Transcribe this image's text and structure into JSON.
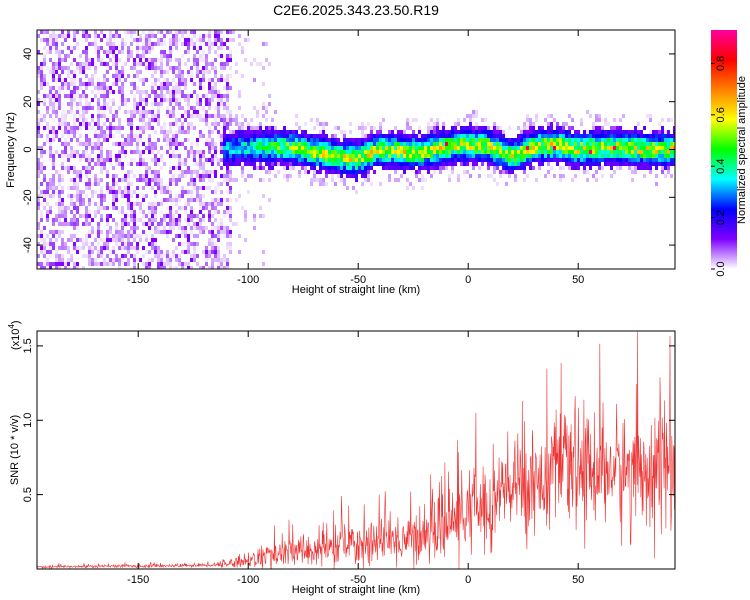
{
  "figure_title": "C2E6.2025.343.23.50.R19",
  "chart_data": [
    {
      "type": "heatmap",
      "title": "",
      "xlabel": "Height of straight line (km)",
      "ylabel": "Frequency (Hz)",
      "xlim": [
        -196,
        94
      ],
      "ylim": [
        -50,
        50
      ],
      "x_ticks": [
        -150,
        -100,
        -50,
        0,
        50
      ],
      "y_ticks": [
        -40,
        -20,
        0,
        20,
        40
      ],
      "x_tick_labels": [
        "-150",
        "-100",
        "-50",
        "0",
        "50"
      ],
      "y_tick_labels": [
        "-40",
        "-20",
        "0",
        "20",
        "40"
      ],
      "colorbar": {
        "label": "Normalized spectral amplitude",
        "range": [
          0,
          0.93
        ],
        "ticks": [
          0.0,
          0.2,
          0.4,
          0.6,
          0.8
        ],
        "tick_labels": [
          "0.0",
          "0.2",
          "0.4",
          "0.6",
          "0.8"
        ],
        "colormap": [
          "#ffffff",
          "#7f00ff",
          "#0000ff",
          "#00ffff",
          "#00ff00",
          "#ffff00",
          "#ff8000",
          "#ff0000",
          "#ff00a0"
        ]
      },
      "regions": [
        {
          "name": "noise",
          "x_range": [
            -196,
            -108
          ],
          "y_range": [
            -50,
            50
          ],
          "amplitude_max": 0.08
        },
        {
          "name": "signal-band",
          "x_range": [
            -112,
            94
          ],
          "center_freq": 0,
          "half_width": 8,
          "amplitude_max": 0.93
        }
      ],
      "signal_centerline": {
        "x": [
          -112,
          -100,
          -80,
          -60,
          -50,
          -40,
          -30,
          -20,
          -10,
          0,
          10,
          20,
          30,
          40,
          50,
          60,
          70,
          80,
          94
        ],
        "y": [
          0,
          1,
          1,
          -3,
          -4,
          0,
          -1,
          -1,
          1,
          2,
          1,
          -3,
          1,
          2,
          0,
          1,
          1,
          0,
          0
        ]
      }
    },
    {
      "type": "line",
      "title": "",
      "xlabel": "Height of straight line (km)",
      "ylabel": "SNR (10 * v/v)",
      "y_multiplier_label": "(x10",
      "y_multiplier_exp": "4",
      "xlim": [
        -196,
        94
      ],
      "ylim": [
        0,
        16000
      ],
      "x_ticks": [
        -150,
        -100,
        -50,
        0,
        50
      ],
      "x_tick_labels": [
        "-150",
        "-100",
        "-50",
        "0",
        "50"
      ],
      "y_ticks": [
        5000,
        10000,
        15000
      ],
      "y_tick_labels": [
        "0.5",
        "1.0",
        "1.5"
      ],
      "series_color": "#ee3333",
      "envelope": {
        "x": [
          -196,
          -150,
          -120,
          -110,
          -100,
          -90,
          -80,
          -70,
          -60,
          -50,
          -40,
          -30,
          -20,
          -10,
          0,
          10,
          20,
          30,
          40,
          50,
          60,
          70,
          80,
          94
        ],
        "mean": [
          150,
          200,
          250,
          350,
          600,
          900,
          1100,
          1300,
          1500,
          1700,
          1900,
          2000,
          2300,
          3000,
          3800,
          4500,
          5500,
          6000,
          6500,
          6800,
          6800,
          6500,
          6800,
          7000
        ],
        "spread": [
          80,
          100,
          120,
          250,
          500,
          800,
          1000,
          1200,
          1300,
          1400,
          1500,
          1600,
          1800,
          2200,
          2600,
          3000,
          3200,
          3300,
          3400,
          3500,
          3600,
          3700,
          3900,
          4000
        ]
      }
    }
  ]
}
